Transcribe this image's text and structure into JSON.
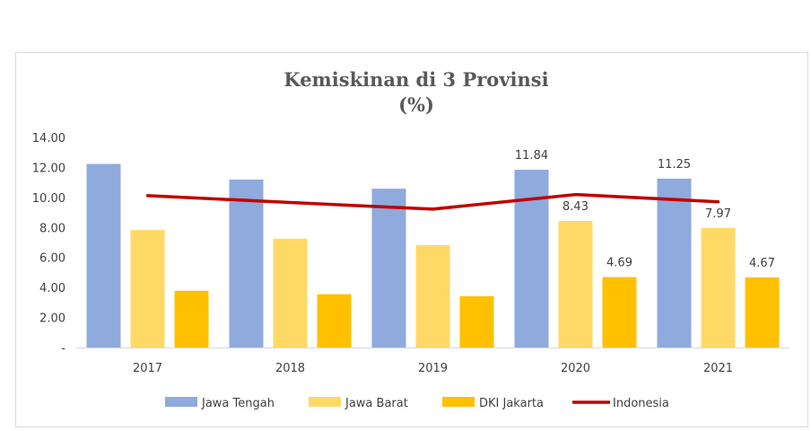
{
  "chart_data": {
    "type": "bar",
    "title": "Kemiskinan di 3 Provinsi",
    "subtitle": "(%)",
    "categories": [
      "2017",
      "2018",
      "2019",
      "2020",
      "2021"
    ],
    "ylim": [
      0,
      14
    ],
    "y_ticks": [
      "-",
      "2.00",
      "4.00",
      "6.00",
      "8.00",
      "10.00",
      "12.00",
      "14.00"
    ],
    "y_tick_values": [
      0,
      2,
      4,
      6,
      8,
      10,
      12,
      14
    ],
    "grid": false,
    "legend_position": "bottom",
    "series": [
      {
        "name": "Jawa Tengah",
        "type": "bar",
        "color": "#8FAADC",
        "values": [
          12.23,
          11.19,
          10.58,
          11.84,
          11.25
        ],
        "data_labels": [
          null,
          null,
          null,
          "11.84",
          "11.25"
        ]
      },
      {
        "name": "Jawa Barat",
        "type": "bar",
        "color": "#FFD966",
        "values": [
          7.83,
          7.25,
          6.82,
          8.43,
          7.97
        ],
        "data_labels": [
          null,
          null,
          null,
          "8.43",
          "7.97"
        ]
      },
      {
        "name": "DKI Jakarta",
        "type": "bar",
        "color": "#FFC000",
        "values": [
          3.78,
          3.55,
          3.42,
          4.69,
          4.67
        ],
        "data_labels": [
          null,
          null,
          null,
          "4.69",
          "4.67"
        ]
      },
      {
        "name": "Indonesia",
        "type": "line",
        "color": "#C00000",
        "values": [
          10.12,
          9.66,
          9.22,
          10.19,
          9.71
        ],
        "data_labels": [
          null,
          null,
          null,
          null,
          null
        ]
      }
    ]
  }
}
